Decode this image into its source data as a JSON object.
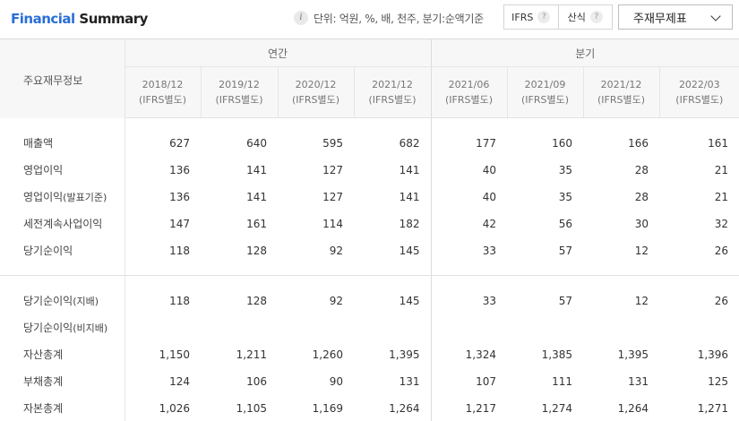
{
  "header": {
    "title_part1": "Financial",
    "title_part2": "Summary",
    "unit_text": "단위: 억원, %, 배, 천주, 분기:순액기준",
    "toggle": [
      {
        "label": "IFRS",
        "help": "?"
      },
      {
        "label": "산식",
        "help": "?"
      }
    ],
    "select_value": "주재무제표"
  },
  "table": {
    "row_header": "주요재무정보",
    "group_annual": "연간",
    "group_quarter": "분기",
    "periods": [
      {
        "date": "2018/12",
        "basis": "(IFRS별도)"
      },
      {
        "date": "2019/12",
        "basis": "(IFRS별도)"
      },
      {
        "date": "2020/12",
        "basis": "(IFRS별도)"
      },
      {
        "date": "2021/12",
        "basis": "(IFRS별도)"
      },
      {
        "date": "2021/06",
        "basis": "(IFRS별도)"
      },
      {
        "date": "2021/09",
        "basis": "(IFRS별도)"
      },
      {
        "date": "2021/12",
        "basis": "(IFRS별도)"
      },
      {
        "date": "2022/03",
        "basis": "(IFRS별도)"
      }
    ],
    "rows_a": [
      {
        "label": "매출액",
        "sub": "",
        "values": [
          "627",
          "640",
          "595",
          "682",
          "177",
          "160",
          "166",
          "161"
        ]
      },
      {
        "label": "영업이익",
        "sub": "",
        "values": [
          "136",
          "141",
          "127",
          "141",
          "40",
          "35",
          "28",
          "21"
        ]
      },
      {
        "label": "영업이익",
        "sub": "(발표기준)",
        "values": [
          "136",
          "141",
          "127",
          "141",
          "40",
          "35",
          "28",
          "21"
        ]
      },
      {
        "label": "세전계속사업이익",
        "sub": "",
        "values": [
          "147",
          "161",
          "114",
          "182",
          "42",
          "56",
          "30",
          "32"
        ]
      },
      {
        "label": "당기순이익",
        "sub": "",
        "values": [
          "118",
          "128",
          "92",
          "145",
          "33",
          "57",
          "12",
          "26"
        ]
      }
    ],
    "rows_b": [
      {
        "label": "당기순이익",
        "sub": "(지배)",
        "values": [
          "118",
          "128",
          "92",
          "145",
          "33",
          "57",
          "12",
          "26"
        ]
      },
      {
        "label": "당기순이익",
        "sub": "(비지배)",
        "values": [
          "",
          "",
          "",
          "",
          "",
          "",
          "",
          ""
        ]
      },
      {
        "label": "자산총계",
        "sub": "",
        "values": [
          "1,150",
          "1,211",
          "1,260",
          "1,395",
          "1,324",
          "1,385",
          "1,395",
          "1,396"
        ]
      },
      {
        "label": "부채총계",
        "sub": "",
        "values": [
          "124",
          "106",
          "90",
          "131",
          "107",
          "111",
          "131",
          "125"
        ]
      },
      {
        "label": "자본총계",
        "sub": "",
        "values": [
          "1,026",
          "1,105",
          "1,169",
          "1,264",
          "1,217",
          "1,274",
          "1,264",
          "1,271"
        ]
      }
    ]
  }
}
